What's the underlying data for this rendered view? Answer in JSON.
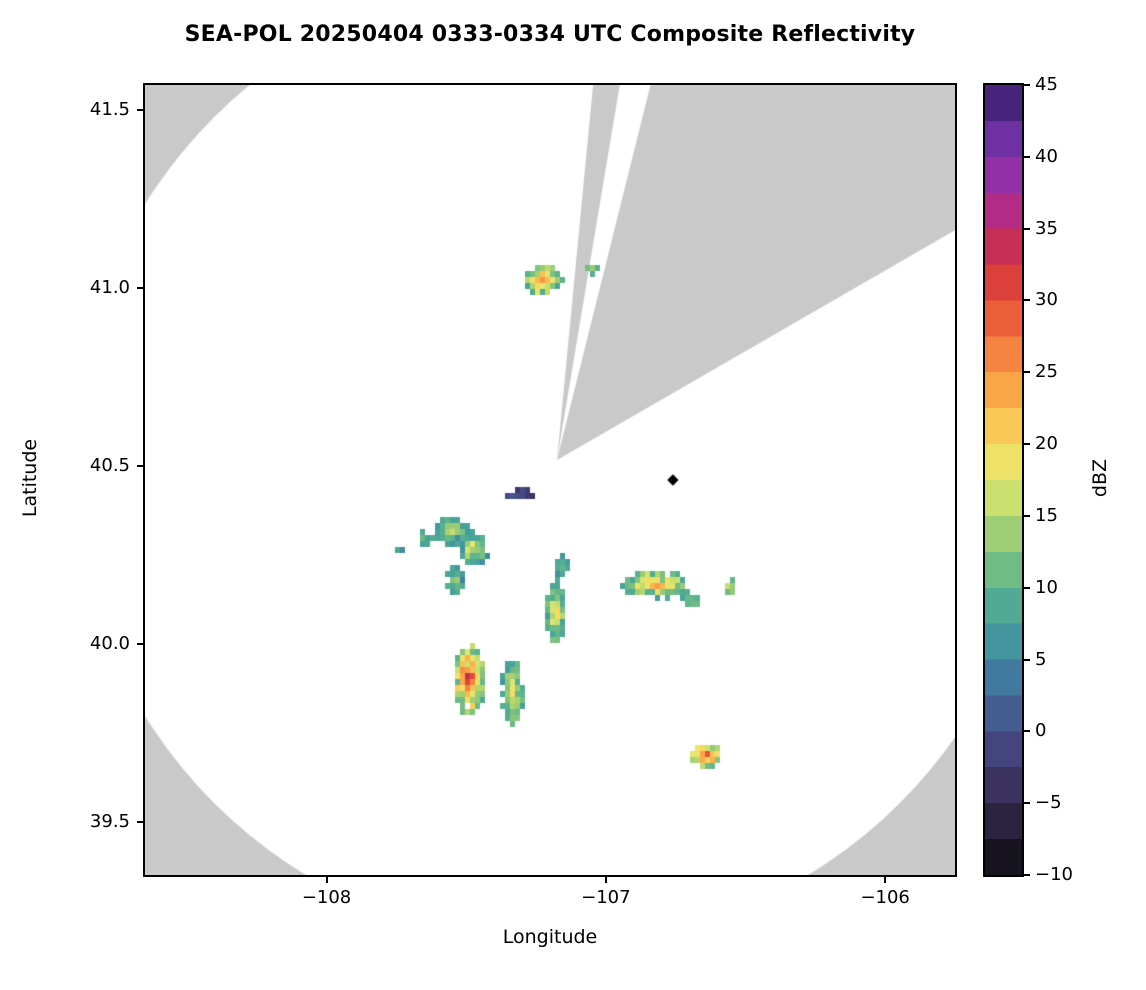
{
  "chart_data": {
    "type": "heatmap",
    "title": "SEA-POL 20250404 0333-0334 UTC Composite Reflectivity",
    "xlabel": "Longitude",
    "ylabel": "Latitude",
    "colorbar_label": "dBZ",
    "lon_range": [
      -108.65,
      -105.75
    ],
    "lat_range": [
      39.35,
      41.57
    ],
    "x_ticks": [
      {
        "value": -108,
        "label": "−108"
      },
      {
        "value": -107,
        "label": "−107"
      },
      {
        "value": -106,
        "label": "−106"
      }
    ],
    "y_ticks": [
      {
        "value": 41.5,
        "label": "41.5"
      },
      {
        "value": 41.0,
        "label": "41.0"
      },
      {
        "value": 40.5,
        "label": "40.5"
      },
      {
        "value": 40.0,
        "label": "40.0"
      },
      {
        "value": 39.5,
        "label": "39.5"
      }
    ],
    "colorbar": {
      "min": -10,
      "max": 45,
      "band_step": 2.5,
      "ticks": [
        {
          "value": 45,
          "label": "45"
        },
        {
          "value": 40,
          "label": "40"
        },
        {
          "value": 35,
          "label": "35"
        },
        {
          "value": 30,
          "label": "30"
        },
        {
          "value": 25,
          "label": "25"
        },
        {
          "value": 20,
          "label": "20"
        },
        {
          "value": 15,
          "label": "15"
        },
        {
          "value": 10,
          "label": "10"
        },
        {
          "value": 5,
          "label": "5"
        },
        {
          "value": 0,
          "label": "0"
        },
        {
          "value": -5,
          "label": "−5"
        },
        {
          "value": -10,
          "label": "−10"
        }
      ]
    },
    "colormap_stops": [
      [
        -10,
        "#0a090d"
      ],
      [
        -7.5,
        "#231c30"
      ],
      [
        -5,
        "#352a52"
      ],
      [
        -2.5,
        "#403a6e"
      ],
      [
        0,
        "#465089"
      ],
      [
        2.5,
        "#426b9b"
      ],
      [
        5,
        "#3f88a1"
      ],
      [
        7.5,
        "#47a29b"
      ],
      [
        10,
        "#5bb38c"
      ],
      [
        12.5,
        "#85c47d"
      ],
      [
        15,
        "#b6d76d"
      ],
      [
        17.5,
        "#e2e871"
      ],
      [
        20,
        "#f9d95f"
      ],
      [
        22.5,
        "#fbb74e"
      ],
      [
        25,
        "#f79544"
      ],
      [
        27.5,
        "#f2723c"
      ],
      [
        30,
        "#e54e36"
      ],
      [
        32.5,
        "#d03140"
      ],
      [
        35,
        "#bd2a6c"
      ],
      [
        37.5,
        "#a62d9d"
      ],
      [
        40,
        "#8132b0"
      ],
      [
        42.5,
        "#5c2d96"
      ],
      [
        45,
        "#341b5e"
      ]
    ],
    "colors": {
      "outside_scan": "#c9c9c9",
      "inside_scan": "#ffffff",
      "marker": "#000000"
    },
    "radar_scan": {
      "center_lon": -107.175,
      "center_lat": 40.516,
      "radius_px": 485,
      "gap_sectors_deg": [
        [
          5.5,
          9.5
        ],
        [
          14,
          60
        ]
      ]
    },
    "site_marker": {
      "lon": -106.76,
      "lat": 40.46
    },
    "echoes": [
      {
        "lon": -107.235,
        "lat": 41.03,
        "w": 0.13,
        "h": 0.075,
        "rot": -10,
        "max": 26,
        "min": 9,
        "n": 150,
        "seed": 11
      },
      {
        "lon": -107.06,
        "lat": 41.065,
        "w": 0.035,
        "h": 0.03,
        "rot": 0,
        "max": 16,
        "min": 9,
        "n": 14,
        "seed": 12
      },
      {
        "lon": -107.31,
        "lat": 40.425,
        "w": 0.1,
        "h": 0.018,
        "rot": 0,
        "max": 2,
        "min": -2,
        "n": 42,
        "seed": 13
      },
      {
        "lon": -107.56,
        "lat": 40.325,
        "w": 0.11,
        "h": 0.065,
        "rot": -25,
        "max": 18,
        "min": 7,
        "n": 110,
        "seed": 14
      },
      {
        "lon": -107.485,
        "lat": 40.275,
        "w": 0.1,
        "h": 0.085,
        "rot": 10,
        "max": 19,
        "min": 6,
        "n": 130,
        "seed": 15
      },
      {
        "lon": -107.655,
        "lat": 40.305,
        "w": 0.05,
        "h": 0.035,
        "rot": 0,
        "max": 10,
        "min": 6,
        "n": 26,
        "seed": 16
      },
      {
        "lon": -107.745,
        "lat": 40.275,
        "w": 0.035,
        "h": 0.02,
        "rot": 0,
        "max": 9,
        "min": 6,
        "n": 12,
        "seed": 17
      },
      {
        "lon": -107.55,
        "lat": 40.185,
        "w": 0.055,
        "h": 0.075,
        "rot": 15,
        "max": 13,
        "min": 6,
        "n": 55,
        "seed": 18
      },
      {
        "lon": -107.19,
        "lat": 40.1,
        "w": 0.065,
        "h": 0.17,
        "rot": 8,
        "max": 21,
        "min": 7,
        "n": 170,
        "seed": 19
      },
      {
        "lon": -107.165,
        "lat": 40.23,
        "w": 0.045,
        "h": 0.05,
        "rot": 0,
        "max": 13,
        "min": 7,
        "n": 35,
        "seed": 20
      },
      {
        "lon": -106.83,
        "lat": 40.175,
        "w": 0.24,
        "h": 0.065,
        "rot": 6,
        "max": 25,
        "min": 8,
        "n": 170,
        "seed": 21
      },
      {
        "lon": -106.705,
        "lat": 40.135,
        "w": 0.06,
        "h": 0.04,
        "rot": 0,
        "max": 14,
        "min": 8,
        "n": 30,
        "seed": 22
      },
      {
        "lon": -106.565,
        "lat": 40.17,
        "w": 0.03,
        "h": 0.035,
        "rot": 0,
        "max": 19,
        "min": 10,
        "n": 12,
        "seed": 23
      },
      {
        "lon": -107.5,
        "lat": 39.905,
        "w": 0.1,
        "h": 0.19,
        "rot": -8,
        "max": 33,
        "min": 10,
        "n": 240,
        "seed": 24
      },
      {
        "lon": -107.345,
        "lat": 39.87,
        "w": 0.07,
        "h": 0.17,
        "rot": -5,
        "max": 20,
        "min": 8,
        "n": 150,
        "seed": 25
      },
      {
        "lon": -106.65,
        "lat": 39.695,
        "w": 0.115,
        "h": 0.055,
        "rot": -28,
        "max": 29,
        "min": 11,
        "n": 110,
        "seed": 26
      }
    ]
  }
}
